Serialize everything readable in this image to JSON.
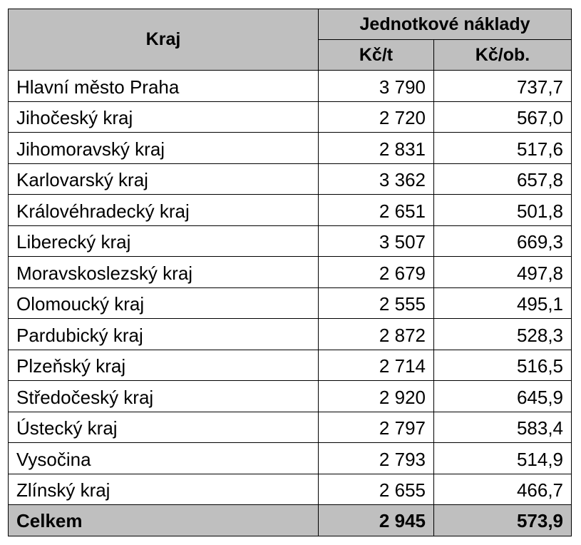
{
  "table": {
    "header": {
      "region": "Kraj",
      "group": "Jednotkové náklady",
      "col_per_ton": "Kč/t",
      "col_per_capita": "Kč/ob."
    },
    "rows": [
      {
        "region": "Hlavní město Praha",
        "per_ton": "3 790",
        "per_capita": "737,7"
      },
      {
        "region": "Jihočeský kraj",
        "per_ton": "2 720",
        "per_capita": "567,0"
      },
      {
        "region": "Jihomoravský kraj",
        "per_ton": "2 831",
        "per_capita": "517,6"
      },
      {
        "region": "Karlovarský kraj",
        "per_ton": "3 362",
        "per_capita": "657,8"
      },
      {
        "region": "Královéhradecký kraj",
        "per_ton": "2 651",
        "per_capita": "501,8"
      },
      {
        "region": "Liberecký kraj",
        "per_ton": "3 507",
        "per_capita": "669,3"
      },
      {
        "region": "Moravskoslezský kraj",
        "per_ton": "2 679",
        "per_capita": "497,8"
      },
      {
        "region": "Olomoucký kraj",
        "per_ton": "2 555",
        "per_capita": "495,1"
      },
      {
        "region": "Pardubický kraj",
        "per_ton": "2 872",
        "per_capita": "528,3"
      },
      {
        "region": "Plzeňský kraj",
        "per_ton": "2 714",
        "per_capita": "516,5"
      },
      {
        "region": "Středočeský kraj",
        "per_ton": "2 920",
        "per_capita": "645,9"
      },
      {
        "region": "Ústecký kraj",
        "per_ton": "2 797",
        "per_capita": "583,4"
      },
      {
        "region": "Vysočina",
        "per_ton": "2 793",
        "per_capita": "514,9"
      },
      {
        "region": "Zlínský kraj",
        "per_ton": "2 655",
        "per_capita": "466,7"
      }
    ],
    "total": {
      "region": "Celkem",
      "per_ton": "2 945",
      "per_capita": "573,9"
    },
    "colors": {
      "header_background": "#bfbfbf",
      "total_background": "#bfbfbf",
      "border": "#000000"
    }
  }
}
